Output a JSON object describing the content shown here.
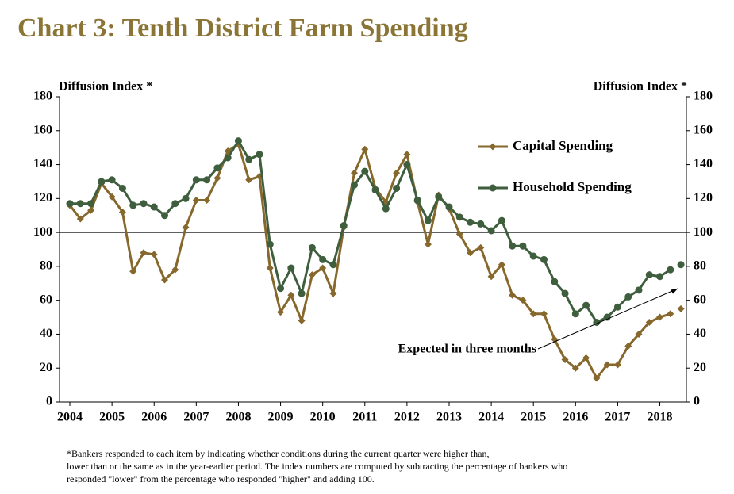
{
  "chart_data": {
    "type": "line",
    "title": "Chart 3: Tenth District Farm Spending",
    "y_label": "Diffusion Index *",
    "y2_label": "Diffusion Index *",
    "x": [
      2004,
      2004.25,
      2004.5,
      2004.75,
      2005,
      2005.25,
      2005.5,
      2005.75,
      2006,
      2006.25,
      2006.5,
      2006.75,
      2007,
      2007.25,
      2007.5,
      2007.75,
      2008,
      2008.25,
      2008.5,
      2008.75,
      2009,
      2009.25,
      2009.5,
      2009.75,
      2010,
      2010.25,
      2010.5,
      2010.75,
      2011,
      2011.25,
      2011.5,
      2011.75,
      2012,
      2012.25,
      2012.5,
      2012.75,
      2013,
      2013.25,
      2013.5,
      2013.75,
      2014,
      2014.25,
      2014.5,
      2014.75,
      2015,
      2015.25,
      2015.5,
      2015.75,
      2016,
      2016.25,
      2016.5,
      2016.75,
      2017,
      2017.25,
      2017.5,
      2017.75,
      2018,
      2018.25
    ],
    "series": [
      {
        "name": "Capital Spending",
        "color": "#86672c",
        "marker": "diamond",
        "values": [
          116,
          108,
          113,
          129,
          121,
          112,
          77,
          88,
          87,
          72,
          78,
          103,
          119,
          119,
          132,
          148,
          152,
          131,
          133,
          79,
          53,
          63,
          48,
          75,
          79,
          64,
          103,
          135,
          149,
          126,
          118,
          135,
          146,
          118,
          93,
          122,
          114,
          99,
          88,
          91,
          74,
          81,
          63,
          60,
          52,
          52,
          37,
          25,
          20,
          26,
          14,
          22,
          22,
          33,
          40,
          47,
          50,
          52
        ],
        "expected": 55
      },
      {
        "name": "Household Spending",
        "color": "#3e5e3e",
        "marker": "circle",
        "values": [
          117,
          117,
          117,
          130,
          131,
          126,
          116,
          117,
          115,
          110,
          117,
          120,
          131,
          131,
          138,
          144,
          154,
          143,
          146,
          93,
          67,
          79,
          64,
          91,
          84,
          81,
          104,
          128,
          136,
          125,
          114,
          126,
          140,
          119,
          107,
          121,
          115,
          109,
          106,
          105,
          101,
          107,
          92,
          92,
          86,
          84,
          71,
          64,
          52,
          57,
          47,
          50,
          56,
          62,
          66,
          75,
          74,
          78
        ],
        "expected": 81
      }
    ],
    "expected_x": 2018.5,
    "annotation": "Expected in three months",
    "xlim": [
      2003.755,
      2018.63
    ],
    "xticks": [
      2004,
      2005,
      2006,
      2007,
      2008,
      2009,
      2010,
      2011,
      2012,
      2013,
      2014,
      2015,
      2016,
      2017,
      2018
    ],
    "ylim": [
      0,
      180
    ],
    "yticks": [
      0,
      20,
      40,
      60,
      80,
      100,
      120,
      140,
      160,
      180
    ],
    "y2lim": [
      0,
      180
    ],
    "y2ticks": [
      0,
      20,
      40,
      60,
      80,
      100,
      120,
      140,
      160,
      180
    ],
    "refline": 100,
    "footnote": [
      "*Bankers responded to each item by indicating whether conditions during the current quarter were higher than,",
      "lower than or the same as in the year-earlier period.  The index numbers are computed by subtracting the percentage of bankers who",
      "responded \"lower\" from the percentage who responded \"higher\" and adding 100."
    ]
  }
}
